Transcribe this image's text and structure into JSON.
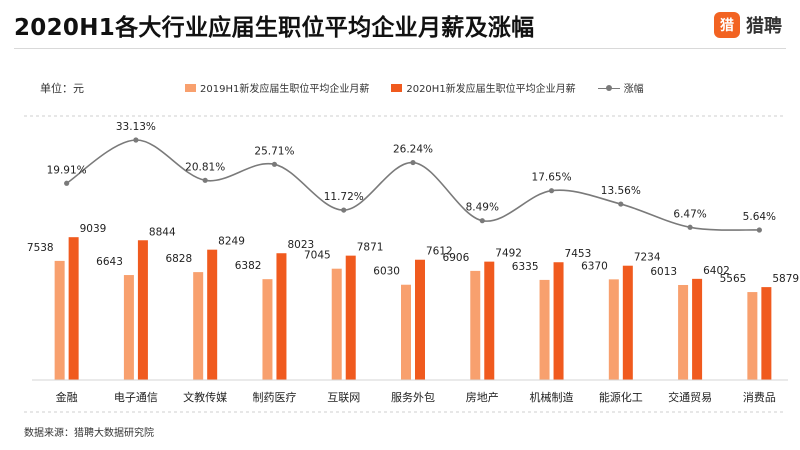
{
  "header": {
    "title": "2020H1各大行业应届生职位平均企业月薪及涨幅",
    "brand_icon": "猎",
    "brand_name": "猎聘"
  },
  "unit_label": "单位：元",
  "source": "数据来源：猎聘大数据研究院",
  "colors": {
    "series_2019": "#f8a06e",
    "series_2020": "#f05a1e",
    "growth_line": "#7a7a7a",
    "brand": "#f26322"
  },
  "chart_data": {
    "type": "bar",
    "categories": [
      "金融",
      "电子通信",
      "文教传媒",
      "制药医疗",
      "互联网",
      "服务外包",
      "房地产",
      "机械制造",
      "能源化工",
      "交通贸易",
      "消费品"
    ],
    "series": [
      {
        "name": "2019H1新发应届生职位平均企业月薪",
        "type": "bar",
        "values": [
          7538,
          6643,
          6828,
          6382,
          7045,
          6030,
          6906,
          6335,
          6370,
          6013,
          5565
        ]
      },
      {
        "name": "2020H1新发应届生职位平均企业月薪",
        "type": "bar",
        "values": [
          9039,
          8844,
          8249,
          8023,
          7871,
          7612,
          7492,
          7453,
          7234,
          6402,
          5879
        ]
      },
      {
        "name": "涨幅",
        "type": "line",
        "values": [
          19.91,
          33.13,
          20.81,
          25.71,
          11.72,
          26.24,
          8.49,
          17.65,
          13.56,
          6.47,
          5.64
        ],
        "labels": [
          "19.91%",
          "33.13%",
          "20.81%",
          "25.71%",
          "11.72%",
          "26.24%",
          "8.49%",
          "17.65%",
          "13.56%",
          "6.47%",
          "5.64%"
        ]
      }
    ],
    "legend_position": "top",
    "grid": false
  }
}
